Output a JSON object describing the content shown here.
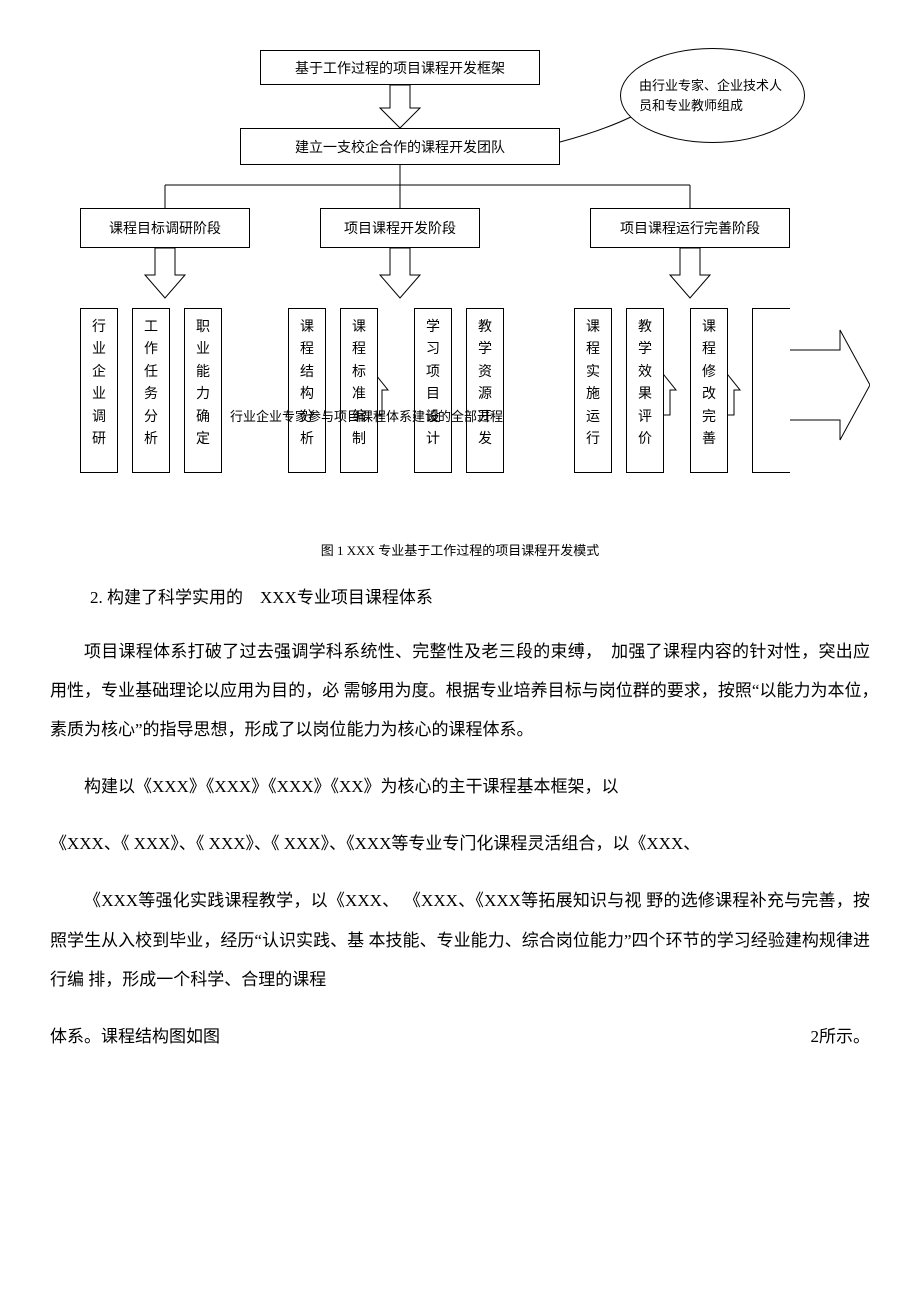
{
  "diagram": {
    "top_box": "基于工作过程的项目课程开发框架",
    "ellipse": "由行业专家、企业技术人员和专业教师组成",
    "mid_box": "建立一支校企合作的课程开发团队",
    "phases": [
      "课程目标调研阶段",
      "项目课程开发阶段",
      "项目课程运行完善阶段"
    ],
    "leaves": [
      "行业企业调研",
      "工作任务分析",
      "职业能力确定",
      "课程结构分析",
      "课程标准编制",
      "学习项目设计",
      "教学资源开发",
      "课程实施运行",
      "教学效果评价",
      "课程修改完善"
    ],
    "overlay": "行业企业专家参与项目课程体系建设的全部过程",
    "caption": "图 1 XXX  专业基于工作过程的项目课程开发模式",
    "colors": {
      "stroke": "#000000",
      "fill_white": "#ffffff"
    }
  },
  "text": {
    "h3": "2. 构建了科学实用的　XXX专业项目课程体系",
    "p1": "项目课程体系打破了过去强调学科系统性、完整性及老三段的束缚，　加强了课程内容的针对性，突出应用性，专业基础理论以应用为目的，必 需够用为度。根据专业培养目标与岗位群的要求，按照“以能力为本位，　素质为核心”的指导思想，形成了以岗位能力为核心的课程体系。",
    "p2": "构建以《XXX》《XXX》《XXX》《XX》为核心的主干课程基本框架，以",
    "p3": "《XXX、《 XXX》、《 XXX》、《 XXX》、《XXX等专业专门化课程灵活组合，以《XXX、",
    "p4": "《XXX等强化实践课程教学，以《XXX、 《XXX、《XXX等拓展知识与视 野的选修课程补充与完善，按照学生从入校到毕业，经历“认识实践、基 本技能、专业能力、综合岗位能力”四个环节的学习经验建构规律进行编 排，形成一个科学、合理的课程",
    "p5_left": "体系。课程结构图如图",
    "p5_right": "2所示。"
  }
}
